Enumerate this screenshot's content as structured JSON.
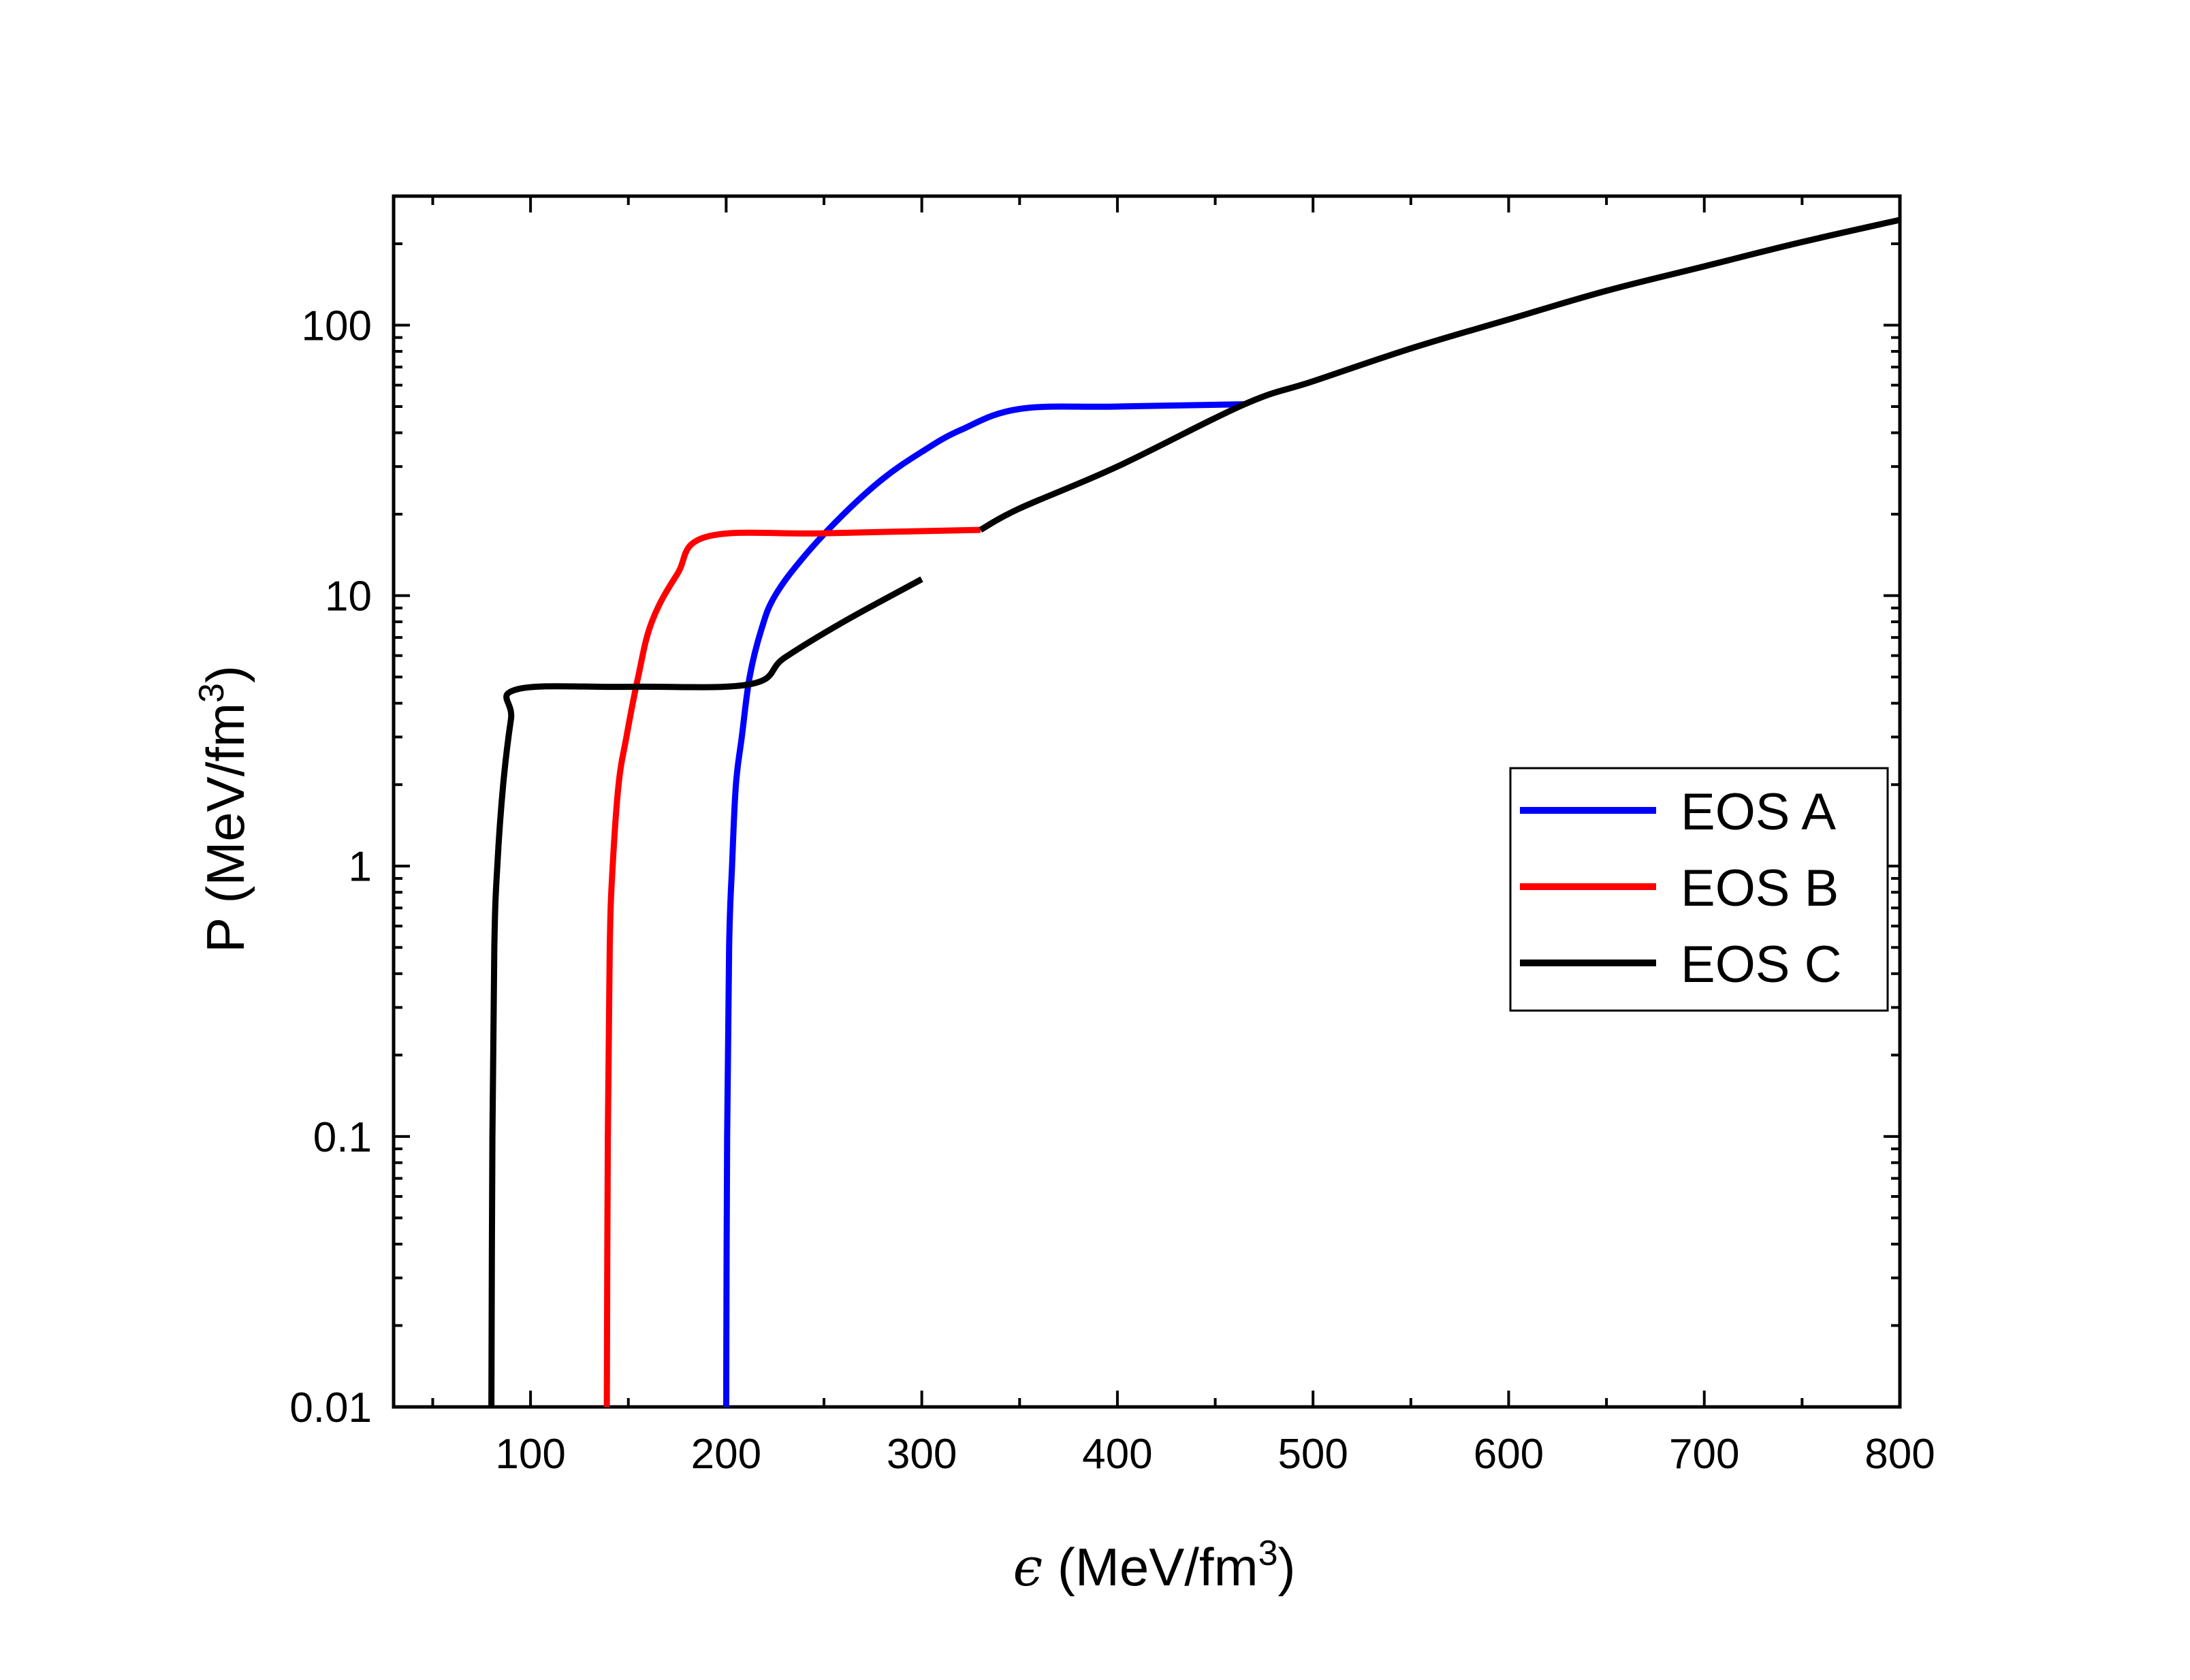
{
  "chart_data": {
    "type": "line",
    "xlabel": {
      "symbol": "ϵ",
      "text": "(MeV/fm",
      "sup": "3",
      "close": ")"
    },
    "ylabel": {
      "text": "P (MeV/fm",
      "sup": "3",
      "close": ")"
    },
    "xlim": [
      30,
      800
    ],
    "ylim": [
      0.01,
      300
    ],
    "yscale": "log",
    "x_ticks": [
      100,
      200,
      300,
      400,
      500,
      600,
      700,
      800
    ],
    "x_tick_labels": [
      "100",
      "200",
      "300",
      "400",
      "500",
      "600",
      "700",
      "800"
    ],
    "y_ticks": [
      0.01,
      0.1,
      1,
      10,
      100
    ],
    "y_tick_labels": [
      "0.01",
      "0.1",
      "1",
      "10",
      "100"
    ],
    "legend_position": "center-right",
    "series": [
      {
        "name": "EOS A",
        "color": "#0000ff",
        "points": [
          [
            200,
            0.01
          ],
          [
            200.5,
            0.1
          ],
          [
            201.5,
            0.5
          ],
          [
            203,
            1
          ],
          [
            205,
            2
          ],
          [
            208,
            3
          ],
          [
            212,
            5
          ],
          [
            218,
            7.5
          ],
          [
            225,
            10
          ],
          [
            240,
            14
          ],
          [
            260,
            20
          ],
          [
            280,
            27
          ],
          [
            300,
            34
          ],
          [
            320,
            41
          ],
          [
            350,
            49
          ],
          [
            400,
            50
          ],
          [
            465,
            51
          ]
        ]
      },
      {
        "name": "EOS B",
        "color": "#ff0000",
        "points": [
          [
            139,
            0.01
          ],
          [
            139.5,
            0.1
          ],
          [
            140.5,
            0.5
          ],
          [
            142,
            1
          ],
          [
            145,
            2
          ],
          [
            149,
            3
          ],
          [
            155,
            5
          ],
          [
            162,
            8
          ],
          [
            175,
            12
          ],
          [
            190,
            16.5
          ],
          [
            250,
            17
          ],
          [
            330,
            17.5
          ]
        ]
      },
      {
        "name": "EOS C",
        "color": "#000000",
        "points": [
          [
            80,
            0.01
          ],
          [
            80.5,
            0.1
          ],
          [
            81.5,
            0.5
          ],
          [
            83,
            1
          ],
          [
            86,
            2
          ],
          [
            90,
            3.5
          ],
          [
            93,
            4.5
          ],
          [
            150,
            4.6
          ],
          [
            212,
            4.7
          ],
          [
            230,
            5.9
          ],
          [
            260,
            8
          ],
          [
            300,
            11.5
          ],
          [
            350,
            17
          ],
          [
            400,
            25
          ],
          [
            465,
            36
          ],
          [
            500,
            58
          ],
          [
            600,
            105
          ],
          [
            700,
            165
          ],
          [
            800,
            245
          ]
        ]
      }
    ],
    "shared_curve": {
      "color": "#000000",
      "points": [
        [
          330,
          17.5
        ],
        [
          350,
          21
        ],
        [
          400,
          30
        ],
        [
          465,
          51
        ],
        [
          500,
          62
        ],
        [
          550,
          82
        ],
        [
          600,
          105
        ],
        [
          650,
          134
        ],
        [
          700,
          165
        ],
        [
          750,
          203
        ],
        [
          800,
          245
        ]
      ]
    }
  }
}
